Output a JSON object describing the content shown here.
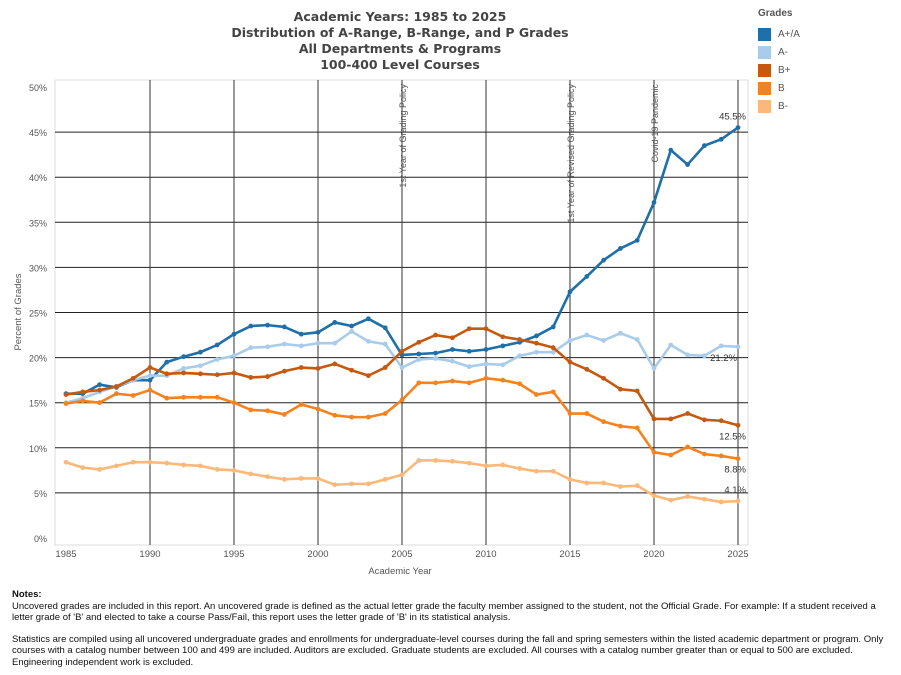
{
  "chart_data": {
    "type": "line",
    "title": [
      "Academic Years: 1985 to 2025",
      "Distribution of A-Range, B-Range, and P Grades",
      "All Departments & Programs",
      "100-400 Level Courses"
    ],
    "xlabel": "Academic Year",
    "ylabel": "Percent of Grades",
    "xlim": [
      1985,
      2025
    ],
    "ylim": [
      0,
      50
    ],
    "x_ticks": [
      1985,
      1990,
      1995,
      2000,
      2005,
      2010,
      2015,
      2020,
      2025
    ],
    "y_ticks": [
      "0%",
      "5%",
      "10%",
      "15%",
      "20%",
      "25%",
      "30%",
      "35%",
      "40%",
      "45%",
      "50%"
    ],
    "grid": true,
    "legend_title": "Grades",
    "legend_position": "top-right",
    "x": [
      1985,
      1986,
      1987,
      1988,
      1989,
      1990,
      1991,
      1992,
      1993,
      1994,
      1995,
      1996,
      1997,
      1998,
      1999,
      2000,
      2001,
      2002,
      2003,
      2004,
      2005,
      2006,
      2007,
      2008,
      2009,
      2010,
      2011,
      2012,
      2013,
      2014,
      2015,
      2016,
      2017,
      2018,
      2019,
      2020,
      2021,
      2022,
      2023,
      2024,
      2025
    ],
    "series": [
      {
        "name": "A+/A",
        "color": "#1f6fa8",
        "values": [
          16.0,
          16.0,
          17.0,
          16.7,
          17.5,
          17.5,
          19.5,
          20.1,
          20.6,
          21.4,
          22.6,
          23.5,
          23.6,
          23.4,
          22.6,
          22.8,
          23.9,
          23.5,
          24.3,
          23.3,
          20.3,
          20.4,
          20.5,
          20.9,
          20.7,
          20.9,
          21.3,
          21.7,
          22.4,
          23.4,
          27.3,
          29.0,
          30.8,
          32.1,
          33.0,
          37.2,
          43.0,
          41.4,
          43.5,
          44.2,
          45.5
        ],
        "end_label": "45.5%"
      },
      {
        "name": "A-",
        "color": "#a8cce9",
        "values": [
          15.0,
          15.5,
          16.2,
          16.8,
          17.5,
          18.0,
          18.0,
          18.8,
          19.1,
          19.8,
          20.2,
          21.1,
          21.2,
          21.5,
          21.3,
          21.6,
          21.6,
          22.9,
          21.8,
          21.5,
          18.9,
          19.8,
          19.9,
          19.6,
          19.0,
          19.3,
          19.2,
          20.2,
          20.6,
          20.6,
          21.9,
          22.5,
          21.9,
          22.7,
          22.0,
          18.8,
          21.4,
          20.3,
          20.2,
          21.3,
          21.2
        ],
        "end_label": "21.2%"
      },
      {
        "name": "B+",
        "color": "#c4590f",
        "values": [
          15.9,
          16.2,
          16.4,
          16.8,
          17.7,
          18.9,
          18.2,
          18.3,
          18.2,
          18.1,
          18.3,
          17.8,
          17.9,
          18.5,
          18.9,
          18.8,
          19.3,
          18.6,
          18.0,
          18.9,
          20.7,
          21.7,
          22.5,
          22.2,
          23.2,
          23.2,
          22.3,
          22.0,
          21.6,
          21.1,
          19.5,
          18.7,
          17.7,
          16.5,
          16.3,
          13.2,
          13.2,
          13.8,
          13.1,
          13.0,
          12.5
        ],
        "end_label": "12.5%"
      },
      {
        "name": "B",
        "color": "#f5821f",
        "values": [
          14.9,
          15.2,
          15.0,
          16.0,
          15.8,
          16.4,
          15.5,
          15.6,
          15.6,
          15.6,
          15.0,
          14.2,
          14.1,
          13.7,
          14.8,
          14.3,
          13.6,
          13.4,
          13.4,
          13.8,
          15.3,
          17.2,
          17.2,
          17.4,
          17.2,
          17.7,
          17.5,
          17.1,
          15.9,
          16.2,
          13.8,
          13.8,
          12.9,
          12.4,
          12.2,
          9.5,
          9.2,
          10.1,
          9.3,
          9.1,
          8.8
        ],
        "end_label": "8.8%"
      },
      {
        "name": "B-",
        "color": "#fbb878",
        "values": [
          8.4,
          7.8,
          7.6,
          8.0,
          8.4,
          8.4,
          8.3,
          8.1,
          8.0,
          7.6,
          7.5,
          7.1,
          6.8,
          6.5,
          6.6,
          6.6,
          5.9,
          6.0,
          6.0,
          6.5,
          7.0,
          8.6,
          8.6,
          8.5,
          8.3,
          8.0,
          8.1,
          7.7,
          7.4,
          7.4,
          6.5,
          6.1,
          6.1,
          5.7,
          5.8,
          4.7,
          4.2,
          4.6,
          4.3,
          4.0,
          4.1
        ],
        "end_label": "4.1%"
      }
    ],
    "annotations": [
      {
        "x": 2005,
        "text": "1st Year of Grading Policy"
      },
      {
        "x": 2015,
        "text": "1st Year of Revised Grading Policy"
      },
      {
        "x": 2020,
        "text": "Covid-19 Pandemic"
      }
    ]
  },
  "notes": {
    "heading": "Notes:",
    "p1": "Uncovered grades are included in this report. An uncovered grade is defined as the actual letter grade the faculty member assigned to the student, not the Official Grade.  For example: If a student received a letter grade of 'B' and elected to take a course Pass/Fail, this report uses the letter grade of 'B' in its statistical analysis.",
    "p2": "Statistics are compiled using all uncovered undergraduate grades and enrollments for undergraduate-level courses during the fall and spring semesters within the listed academic department or program.  Only courses with a catalog number between 100 and 499 are included.  Auditors are excluded.  Graduate students are excluded.  All courses with a catalog number greater than or equal to 500 are excluded.  Engineering independent work is excluded."
  }
}
